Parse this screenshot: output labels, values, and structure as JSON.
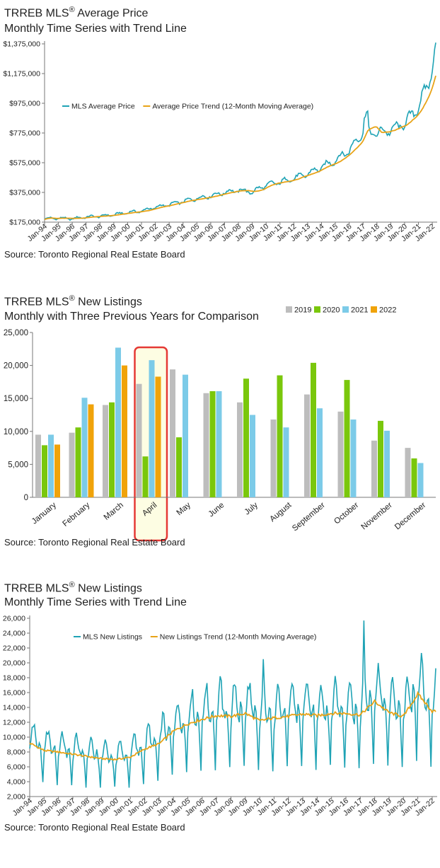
{
  "colors": {
    "teal": "#1fa3b5",
    "gold": "#e8a317",
    "c2019": "#bdbdbd",
    "c2020": "#7ac70c",
    "c2021": "#7ccbe8",
    "c2022": "#f0a30a",
    "highlight": "#e53935",
    "highlightFill": "#fdfde3"
  },
  "chart_data": [
    {
      "type": "line",
      "title_main": "TRREB MLS",
      "title_reg": "®",
      "title_rest": " Average Price",
      "subtitle": "Monthly Time Series with Trend Line",
      "source": "Source: Toronto Regional Real Estate Board",
      "ylim": [
        175000,
        1375000
      ],
      "yticks": [
        175000,
        375000,
        575000,
        775000,
        975000,
        1175000,
        1375000
      ],
      "ytick_labels": [
        "$175,000",
        "$375,000",
        "$575,000",
        "$775,000",
        "$975,000",
        "$1,175,000",
        "$1,375,000"
      ],
      "xtick_labels": [
        "Jan-94",
        "Jan-95",
        "Jan-96",
        "Jan-97",
        "Jan-98",
        "Jan-99",
        "Jan-00",
        "Jan-01",
        "Jan-02",
        "Jan-03",
        "Jan-04",
        "Jan-05",
        "Jan-06",
        "Jan-07",
        "Jan-08",
        "Jan-09",
        "Jan-10",
        "Jan-11",
        "Jan-12",
        "Jan-13",
        "Jan-14",
        "Jan-15",
        "Jan-16",
        "Jan-17",
        "Jan-18",
        "Jan-19",
        "Jan-20",
        "Jan-21",
        "Jan-22"
      ],
      "x_range_years": [
        1994,
        2022.25
      ],
      "annual_anchor_values": [
        198000,
        202000,
        198000,
        210000,
        215000,
        225000,
        240000,
        250000,
        275000,
        293000,
        315000,
        335000,
        352000,
        375000,
        390000,
        378000,
        425000,
        445000,
        470000,
        500000,
        545000,
        590000,
        660000,
        780000,
        775000,
        795000,
        840000,
        950000,
        1180000
      ],
      "series": [
        {
          "name": "MLS Average Price",
          "legend": "MLS Average Price",
          "seasonal_amp": 0.035
        },
        {
          "name": "Average Price Trend (12-Month Moving Average)",
          "legend": "Average Price Trend (12-Month Moving Average)"
        }
      ]
    },
    {
      "type": "bar",
      "title_main": "TRREB MLS",
      "title_reg": "®",
      "title_rest": " New Listings",
      "subtitle": "Monthly with Three Previous Years for Comparison",
      "source": "Source: Toronto Regional Real Estate Board",
      "ylim": [
        0,
        25000
      ],
      "yticks": [
        0,
        5000,
        10000,
        15000,
        20000,
        25000
      ],
      "ytick_labels": [
        "0",
        "5,000",
        "10,000",
        "15,000",
        "20,000",
        "25,000"
      ],
      "categories": [
        "January",
        "February",
        "March",
        "April",
        "May",
        "June",
        "July",
        "August",
        "September",
        "October",
        "November",
        "December"
      ],
      "highlight_category": "April",
      "series": [
        {
          "name": "2019",
          "values": [
            9500,
            9800,
            14000,
            17200,
            19400,
            15800,
            14400,
            11800,
            15600,
            13000,
            8600,
            7500
          ]
        },
        {
          "name": "2020",
          "values": [
            7900,
            10600,
            14400,
            6200,
            9100,
            16100,
            18000,
            18500,
            20400,
            17800,
            11600,
            5900
          ]
        },
        {
          "name": "2021",
          "values": [
            9500,
            15100,
            22700,
            20800,
            18600,
            16100,
            12500,
            10600,
            13500,
            11800,
            10100,
            5200
          ]
        },
        {
          "name": "2022",
          "values": [
            8000,
            14100,
            20000,
            18300,
            null,
            null,
            null,
            null,
            null,
            null,
            null,
            null
          ]
        }
      ]
    },
    {
      "type": "line",
      "title_main": "TRREB MLS",
      "title_reg": "®",
      "title_rest": " New Listings",
      "subtitle": "Monthly Time Series with Trend Line",
      "source": "Source: Toronto Regional Real Estate Board",
      "ylim": [
        2000,
        26000
      ],
      "yticks": [
        2000,
        4000,
        6000,
        8000,
        10000,
        12000,
        14000,
        16000,
        18000,
        20000,
        22000,
        24000,
        26000
      ],
      "ytick_labels": [
        "2,000",
        "4,000",
        "6,000",
        "8,000",
        "10,000",
        "12,000",
        "14,000",
        "16,000",
        "18,000",
        "20,000",
        "22,000",
        "24,000",
        "26,000"
      ],
      "xtick_labels": [
        "Jan-94",
        "Jan-95",
        "Jan-96",
        "Jan-97",
        "Jan-98",
        "Jan-99",
        "Jan-00",
        "Jan-01",
        "Jan-02",
        "Jan-03",
        "Jan-04",
        "Jan-05",
        "Jan-06",
        "Jan-07",
        "Jan-08",
        "Jan-09",
        "Jan-10",
        "Jan-11",
        "Jan-12",
        "Jan-13",
        "Jan-14",
        "Jan-15",
        "Jan-16",
        "Jan-17",
        "Jan-18",
        "Jan-19",
        "Jan-20",
        "Jan-21",
        "Jan-22"
      ],
      "x_range_years": [
        1994,
        2022.25
      ],
      "annual_trend_values": [
        9200,
        8200,
        8000,
        7700,
        7400,
        7100,
        7000,
        7300,
        8400,
        9100,
        10800,
        11800,
        12400,
        12900,
        12800,
        13200,
        12200,
        12600,
        12800,
        13100,
        12900,
        13200,
        13200,
        13000,
        14800,
        13300,
        12800,
        15800,
        13500
      ],
      "monthly_peaks_note": "Seasonal peaks roughly 20,500 (2010) and 25,700 (Apr-2017); troughs near 3,300-5,000 each December",
      "series": [
        {
          "name": "MLS New Listings",
          "legend": "MLS New Listings"
        },
        {
          "name": "New Listings Trend (12-Month Moving Average)",
          "legend": "New Listings Trend (12-Month Moving Average)"
        }
      ]
    }
  ]
}
